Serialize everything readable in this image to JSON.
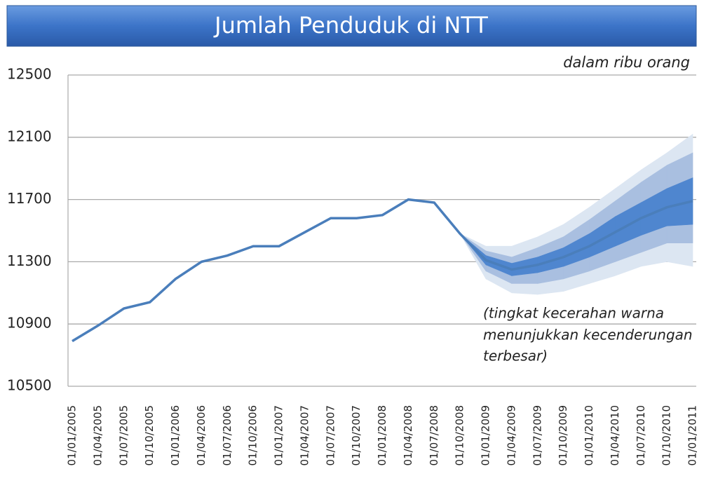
{
  "chart_data": {
    "type": "fan",
    "title": "Jumlah Penduduk di NTT",
    "subtitle": "dalam ribu orang",
    "annotation": [
      "(tingkat kecerahan warna",
      "menunjukkan kecenderungan",
      "terbesar)"
    ],
    "categories": [
      "01/01/2005",
      "01/04/2005",
      "01/07/2005",
      "01/10/2005",
      "01/01/2006",
      "01/04/2006",
      "01/07/2006",
      "01/10/2006",
      "01/01/2007",
      "01/04/2007",
      "01/07/2007",
      "01/10/2007",
      "01/01/2008",
      "01/04/2008",
      "01/07/2008",
      "01/10/2008",
      "01/01/2009",
      "01/04/2009",
      "01/07/2009",
      "01/10/2009",
      "01/01/2010",
      "01/04/2010",
      "01/07/2010",
      "01/10/2010",
      "01/01/2011"
    ],
    "values": [
      10790,
      10890,
      11000,
      11040,
      11190,
      11300,
      11340,
      11400,
      11400,
      11490,
      11580,
      11580,
      11600,
      11700,
      11680,
      11480,
      11310,
      11250,
      11280,
      11330,
      11400,
      11490,
      11580,
      11650,
      11690
    ],
    "color": "#4a7ebb",
    "bands": [
      {
        "color": "#dce6f2",
        "lower": [
          null,
          null,
          null,
          null,
          null,
          null,
          null,
          null,
          null,
          null,
          null,
          null,
          null,
          null,
          null,
          11480,
          11190,
          11100,
          11090,
          11110,
          11160,
          11210,
          11270,
          11300,
          11270
        ],
        "upper": [
          null,
          null,
          null,
          null,
          null,
          null,
          null,
          null,
          null,
          null,
          null,
          null,
          null,
          null,
          null,
          11480,
          11400,
          11400,
          11460,
          11540,
          11650,
          11770,
          11890,
          12000,
          12120
        ]
      },
      {
        "color": "#a9bfe0",
        "lower": [
          null,
          null,
          null,
          null,
          null,
          null,
          null,
          null,
          null,
          null,
          null,
          null,
          null,
          null,
          null,
          11480,
          11240,
          11160,
          11160,
          11190,
          11240,
          11300,
          11360,
          11420,
          11420
        ],
        "upper": [
          null,
          null,
          null,
          null,
          null,
          null,
          null,
          null,
          null,
          null,
          null,
          null,
          null,
          null,
          null,
          11480,
          11370,
          11330,
          11390,
          11460,
          11570,
          11690,
          11810,
          11920,
          12000
        ]
      },
      {
        "color": "#4f86cf",
        "lower": [
          null,
          null,
          null,
          null,
          null,
          null,
          null,
          null,
          null,
          null,
          null,
          null,
          null,
          null,
          null,
          11480,
          11280,
          11210,
          11230,
          11270,
          11330,
          11400,
          11470,
          11530,
          11540
        ],
        "upper": [
          null,
          null,
          null,
          null,
          null,
          null,
          null,
          null,
          null,
          null,
          null,
          null,
          null,
          null,
          null,
          11480,
          11340,
          11290,
          11330,
          11390,
          11480,
          11590,
          11680,
          11770,
          11840
        ]
      }
    ],
    "ylim": [
      10500,
      12500
    ],
    "yticks": [
      10500,
      10900,
      11300,
      11700,
      12100,
      12500
    ],
    "grid": true
  }
}
